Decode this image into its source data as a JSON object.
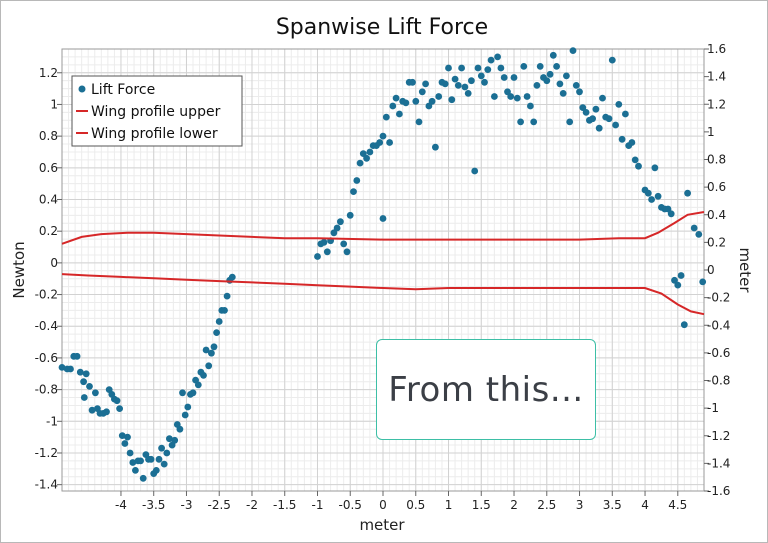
{
  "chart_data": {
    "type": "scatter",
    "title": "Spanwise Lift Force",
    "xlabel": "meter",
    "ylabel": "Newton",
    "y2label": "meter",
    "xlim": [
      -4.9,
      4.9
    ],
    "ylim": [
      -1.44,
      1.35
    ],
    "y2lim": [
      -1.6,
      1.6
    ],
    "grid": true,
    "legend_position": "top-left",
    "x_ticks": [
      -4,
      -3.5,
      -3,
      -2.5,
      -2,
      -1.5,
      -1,
      -0.5,
      0,
      0.5,
      1,
      1.5,
      2,
      2.5,
      3,
      3.5,
      4,
      4.5
    ],
    "x_tick_labels": [
      "-4",
      "-3.5",
      "-3",
      "-2.5",
      "-2",
      "-1.5",
      "-1",
      "-0.5",
      "0",
      "0.5",
      "1",
      "1.5",
      "2",
      "2.5",
      "3",
      "3.5",
      "4",
      "4.5"
    ],
    "y_ticks": [
      -1.4,
      -1.2,
      -1,
      -0.8,
      -0.6,
      -0.4,
      -0.2,
      0,
      0.2,
      0.4,
      0.6,
      0.8,
      1,
      1.2
    ],
    "y_tick_labels": [
      "-1.4",
      "-1.2",
      "-1",
      "-0.8",
      "-0.6",
      "-0.4",
      "-0.2",
      "0",
      "0.2",
      "0.4",
      "0.6",
      "0.8",
      "1",
      "1.2"
    ],
    "y2_ticks": [
      -1.6,
      -1.4,
      -1.2,
      -1,
      -0.8,
      -0.6,
      -0.4,
      -0.2,
      0,
      0.2,
      0.4,
      0.6,
      0.8,
      1,
      1.2,
      1.4,
      1.6
    ],
    "y2_tick_labels": [
      "-1.6",
      "-1.4",
      "-1.2",
      "-1",
      "-0.8",
      "-0.6",
      "-0.4",
      "-0.2",
      "0",
      "0.2",
      "0.4",
      "0.6",
      "0.8",
      "1",
      "1.2",
      "1.4",
      "1.6"
    ],
    "series": [
      {
        "name": "Lift Force",
        "kind": "scatter",
        "axis": "left",
        "color": "#1b6f94",
        "points": [
          [
            -4.9,
            -0.66
          ],
          [
            -4.82,
            -0.67
          ],
          [
            -4.77,
            -0.67
          ],
          [
            -4.72,
            -0.59
          ],
          [
            -4.67,
            -0.59
          ],
          [
            -4.62,
            -0.69
          ],
          [
            -4.57,
            -0.75
          ],
          [
            -4.56,
            -0.85
          ],
          [
            -4.53,
            -0.7
          ],
          [
            -4.48,
            -0.78
          ],
          [
            -4.44,
            -0.93
          ],
          [
            -4.39,
            -0.82
          ],
          [
            -4.36,
            -0.92
          ],
          [
            -4.32,
            -0.95
          ],
          [
            -4.27,
            -0.95
          ],
          [
            -4.22,
            -0.94
          ],
          [
            -4.18,
            -0.8
          ],
          [
            -4.14,
            -0.83
          ],
          [
            -4.1,
            -0.86
          ],
          [
            -4.06,
            -0.87
          ],
          [
            -4.02,
            -0.92
          ],
          [
            -3.98,
            -1.09
          ],
          [
            -3.94,
            -1.14
          ],
          [
            -3.9,
            -1.1
          ],
          [
            -3.86,
            -1.2
          ],
          [
            -3.82,
            -1.26
          ],
          [
            -3.78,
            -1.31
          ],
          [
            -3.74,
            -1.25
          ],
          [
            -3.7,
            -1.25
          ],
          [
            -3.66,
            -1.36
          ],
          [
            -3.62,
            -1.21
          ],
          [
            -3.58,
            -1.24
          ],
          [
            -3.54,
            -1.24
          ],
          [
            -3.5,
            -1.33
          ],
          [
            -3.46,
            -1.31
          ],
          [
            -3.42,
            -1.24
          ],
          [
            -3.38,
            -1.17
          ],
          [
            -3.34,
            -1.27
          ],
          [
            -3.3,
            -1.2
          ],
          [
            -3.26,
            -1.11
          ],
          [
            -3.22,
            -1.15
          ],
          [
            -3.18,
            -1.12
          ],
          [
            -3.14,
            -1.02
          ],
          [
            -3.1,
            -1.05
          ],
          [
            -3.06,
            -0.82
          ],
          [
            -3.02,
            -0.96
          ],
          [
            -2.98,
            -0.91
          ],
          [
            -2.94,
            -0.83
          ],
          [
            -2.9,
            -0.82
          ],
          [
            -2.86,
            -0.74
          ],
          [
            -2.82,
            -0.77
          ],
          [
            -2.78,
            -0.69
          ],
          [
            -2.74,
            -0.71
          ],
          [
            -2.7,
            -0.55
          ],
          [
            -2.66,
            -0.65
          ],
          [
            -2.62,
            -0.57
          ],
          [
            -2.58,
            -0.53
          ],
          [
            -2.54,
            -0.44
          ],
          [
            -2.5,
            -0.37
          ],
          [
            -2.46,
            -0.3
          ],
          [
            -2.42,
            -0.3
          ],
          [
            -2.38,
            -0.21
          ],
          [
            -2.34,
            -0.11
          ],
          [
            -2.3,
            -0.09
          ],
          [
            -1.0,
            0.04
          ],
          [
            -0.95,
            0.12
          ],
          [
            -0.9,
            0.13
          ],
          [
            -0.85,
            0.07
          ],
          [
            -0.8,
            0.14
          ],
          [
            -0.75,
            0.19
          ],
          [
            -0.7,
            0.22
          ],
          [
            -0.65,
            0.26
          ],
          [
            -0.6,
            0.12
          ],
          [
            -0.55,
            0.07
          ],
          [
            -0.5,
            0.3
          ],
          [
            -0.45,
            0.45
          ],
          [
            -0.4,
            0.52
          ],
          [
            -0.35,
            0.63
          ],
          [
            -0.3,
            0.69
          ],
          [
            -0.25,
            0.66
          ],
          [
            -0.2,
            0.7
          ],
          [
            -0.15,
            0.74
          ],
          [
            -0.1,
            0.74
          ],
          [
            -0.05,
            0.76
          ],
          [
            0.0,
            0.8
          ],
          [
            0.0,
            0.28
          ],
          [
            0.05,
            0.92
          ],
          [
            0.1,
            0.76
          ],
          [
            0.15,
            0.99
          ],
          [
            0.2,
            1.04
          ],
          [
            0.25,
            0.94
          ],
          [
            0.3,
            1.02
          ],
          [
            0.35,
            1.01
          ],
          [
            0.4,
            1.14
          ],
          [
            0.45,
            1.14
          ],
          [
            0.5,
            1.02
          ],
          [
            0.55,
            0.89
          ],
          [
            0.6,
            1.08
          ],
          [
            0.65,
            1.13
          ],
          [
            0.7,
            0.99
          ],
          [
            0.75,
            1.02
          ],
          [
            0.8,
            0.73
          ],
          [
            0.85,
            1.05
          ],
          [
            0.9,
            1.14
          ],
          [
            0.95,
            1.13
          ],
          [
            1.0,
            1.23
          ],
          [
            1.05,
            1.03
          ],
          [
            1.1,
            1.16
          ],
          [
            1.15,
            1.12
          ],
          [
            1.2,
            1.23
          ],
          [
            1.25,
            1.11
          ],
          [
            1.3,
            1.07
          ],
          [
            1.35,
            1.15
          ],
          [
            1.4,
            0.58
          ],
          [
            1.45,
            1.23
          ],
          [
            1.5,
            1.18
          ],
          [
            1.55,
            1.14
          ],
          [
            1.6,
            1.22
          ],
          [
            1.65,
            1.28
          ],
          [
            1.7,
            1.05
          ],
          [
            1.75,
            1.3
          ],
          [
            1.8,
            1.23
          ],
          [
            1.85,
            1.17
          ],
          [
            1.9,
            1.08
          ],
          [
            1.95,
            1.05
          ],
          [
            2.0,
            1.17
          ],
          [
            2.05,
            1.04
          ],
          [
            2.1,
            0.89
          ],
          [
            2.15,
            1.24
          ],
          [
            2.2,
            1.05
          ],
          [
            2.25,
            0.99
          ],
          [
            2.3,
            0.89
          ],
          [
            2.35,
            1.12
          ],
          [
            2.4,
            1.24
          ],
          [
            2.45,
            1.17
          ],
          [
            2.5,
            1.15
          ],
          [
            2.55,
            1.19
          ],
          [
            2.6,
            1.31
          ],
          [
            2.65,
            1.24
          ],
          [
            2.7,
            1.13
          ],
          [
            2.75,
            1.07
          ],
          [
            2.8,
            1.18
          ],
          [
            2.85,
            0.89
          ],
          [
            2.9,
            1.34
          ],
          [
            2.95,
            1.12
          ],
          [
            3.0,
            1.08
          ],
          [
            3.05,
            0.98
          ],
          [
            3.1,
            0.95
          ],
          [
            3.15,
            0.9
          ],
          [
            3.2,
            0.91
          ],
          [
            3.25,
            0.97
          ],
          [
            3.3,
            0.85
          ],
          [
            3.35,
            1.04
          ],
          [
            3.4,
            0.92
          ],
          [
            3.45,
            0.91
          ],
          [
            3.5,
            1.28
          ],
          [
            3.55,
            0.87
          ],
          [
            3.6,
            1.0
          ],
          [
            3.65,
            0.78
          ],
          [
            3.7,
            0.94
          ],
          [
            3.75,
            0.74
          ],
          [
            3.8,
            0.76
          ],
          [
            3.85,
            0.65
          ],
          [
            3.9,
            0.61
          ],
          [
            4.0,
            0.46
          ],
          [
            4.05,
            0.44
          ],
          [
            4.1,
            0.4
          ],
          [
            4.15,
            0.6
          ],
          [
            4.2,
            0.42
          ],
          [
            4.25,
            0.35
          ],
          [
            4.3,
            0.34
          ],
          [
            4.35,
            0.34
          ],
          [
            4.4,
            0.31
          ],
          [
            4.45,
            -0.11
          ],
          [
            4.5,
            -0.14
          ],
          [
            4.55,
            -0.08
          ],
          [
            4.6,
            -0.39
          ],
          [
            4.65,
            0.44
          ],
          [
            4.75,
            0.22
          ],
          [
            4.82,
            0.18
          ],
          [
            4.88,
            -0.12
          ]
        ]
      },
      {
        "name": "Wing profile upper",
        "kind": "line",
        "axis": "right",
        "color": "#d62728",
        "points": [
          [
            -4.9,
            0.19
          ],
          [
            -4.6,
            0.24
          ],
          [
            -4.3,
            0.26
          ],
          [
            -3.9,
            0.27
          ],
          [
            -3.5,
            0.27
          ],
          [
            -3.0,
            0.26
          ],
          [
            -2.5,
            0.25
          ],
          [
            -2.0,
            0.24
          ],
          [
            -1.5,
            0.23
          ],
          [
            -1.0,
            0.23
          ],
          [
            0.0,
            0.22
          ],
          [
            1.0,
            0.22
          ],
          [
            2.0,
            0.22
          ],
          [
            3.0,
            0.22
          ],
          [
            3.6,
            0.23
          ],
          [
            4.0,
            0.23
          ],
          [
            4.2,
            0.27
          ],
          [
            4.45,
            0.34
          ],
          [
            4.65,
            0.4
          ],
          [
            4.9,
            0.42
          ]
        ]
      },
      {
        "name": "Wing profile lower",
        "kind": "line",
        "axis": "right",
        "color": "#d62728",
        "points": [
          [
            -4.9,
            -0.03
          ],
          [
            -4.5,
            -0.04
          ],
          [
            -4.0,
            -0.05
          ],
          [
            -3.5,
            -0.06
          ],
          [
            -3.0,
            -0.07
          ],
          [
            -2.5,
            -0.08
          ],
          [
            -2.0,
            -0.09
          ],
          [
            -1.5,
            -0.1
          ],
          [
            -1.0,
            -0.11
          ],
          [
            -0.5,
            -0.12
          ],
          [
            0.0,
            -0.13
          ],
          [
            0.5,
            -0.14
          ],
          [
            1.0,
            -0.13
          ],
          [
            2.0,
            -0.13
          ],
          [
            3.0,
            -0.13
          ],
          [
            4.0,
            -0.13
          ],
          [
            4.25,
            -0.17
          ],
          [
            4.5,
            -0.25
          ],
          [
            4.7,
            -0.3
          ],
          [
            4.9,
            -0.32
          ]
        ]
      }
    ]
  },
  "annotation": {
    "text": "From this..."
  }
}
